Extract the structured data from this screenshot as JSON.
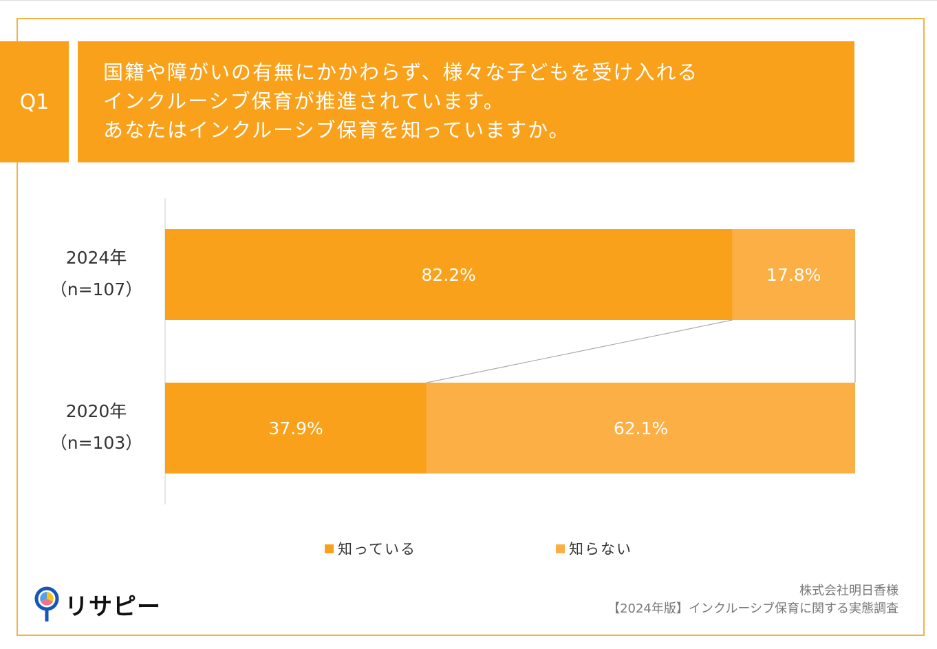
{
  "question": {
    "label": "Q1",
    "lines": [
      "国籍や障がいの有無にかかわらず、様々な子どもを受け入れる",
      "インクルーシブ保育が推進されています。",
      "あなたはインクルーシブ保育を知っていますか。"
    ]
  },
  "chart_data": {
    "type": "bar",
    "orientation": "horizontal-stacked-100",
    "categories": [
      {
        "year": "2024年",
        "n": "（n=107）"
      },
      {
        "year": "2020年",
        "n": "（n=103）"
      }
    ],
    "series": [
      {
        "name": "知っている",
        "color": "#F9A11B",
        "values": [
          82.2,
          37.9
        ],
        "labels": [
          "82.2%",
          "37.9%"
        ]
      },
      {
        "name": "知らない",
        "color": "#FBAF45",
        "values": [
          17.8,
          62.1
        ],
        "labels": [
          "17.8%",
          "62.1%"
        ]
      }
    ],
    "xlim": [
      0,
      100
    ],
    "grid": false,
    "legend_position": "bottom",
    "series_lines": true
  },
  "footer": {
    "brand": "リサピー",
    "credit_lines": [
      "株式会社明日香様",
      "【2024年版】インクルーシブ保育に関する実態調査"
    ]
  },
  "colors": {
    "accent": "#F9A11B",
    "frame": "#F2B441",
    "logo_blue": "#1556B8"
  }
}
